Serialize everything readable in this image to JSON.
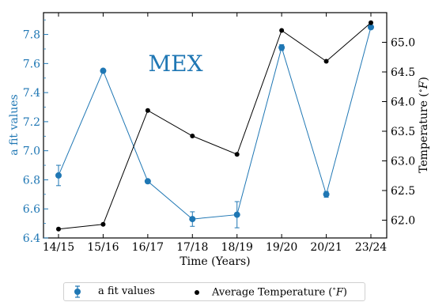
{
  "colors": {
    "afit": "#1f77b4",
    "temp": "#000000"
  },
  "chart_data": {
    "type": "line",
    "annotation": "MEX",
    "categories": [
      "14/15",
      "15/16",
      "16/17",
      "17/18",
      "18/19",
      "19/20",
      "20/21",
      "23/24"
    ],
    "xlabel": "Time (Years)",
    "ylabel_left": "a fit values",
    "ylabel_right": "Temperature ($^\\circ F$)",
    "ylim_left": [
      6.4,
      7.95
    ],
    "ylim_right": [
      61.7,
      65.5
    ],
    "yticks_left": [
      "6.4",
      "6.6",
      "6.8",
      "7.0",
      "7.2",
      "7.4",
      "7.6",
      "7.8"
    ],
    "yticks_right": [
      "62.0",
      "62.5",
      "63.0",
      "63.5",
      "64.0",
      "64.5",
      "65.0"
    ],
    "series": [
      {
        "name": "a fit values",
        "axis": "left",
        "values": [
          6.83,
          7.55,
          6.79,
          6.53,
          6.56,
          7.71,
          6.7,
          7.85
        ],
        "errors": [
          0.07,
          0.01,
          0.01,
          0.05,
          0.09,
          0.02,
          0.02,
          0.01
        ]
      },
      {
        "name": "Average Temperature ($^\\circ F$)",
        "axis": "right",
        "values": [
          61.85,
          61.93,
          63.85,
          63.42,
          63.11,
          65.2,
          64.68,
          65.33
        ]
      }
    ],
    "grid": false,
    "legend_position": "bottom"
  }
}
